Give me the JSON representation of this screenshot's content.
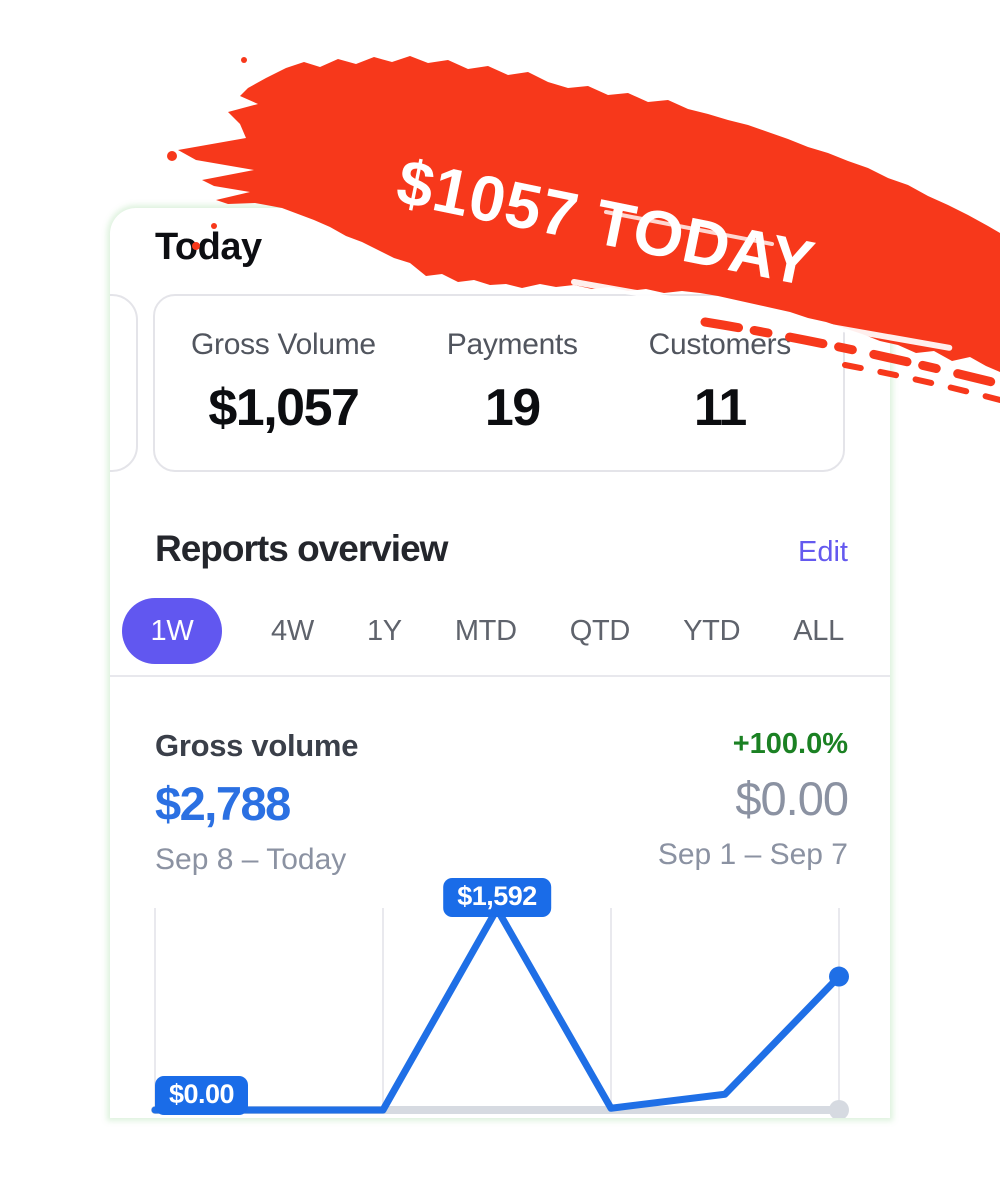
{
  "overlay": {
    "badge_text": "$1057 TODAY"
  },
  "app": {
    "today": {
      "title": "Today",
      "stats": [
        {
          "label": "Gross Volume",
          "value": "$1,057"
        },
        {
          "label": "Payments",
          "value": "19"
        },
        {
          "label": "Customers",
          "value": "11"
        }
      ]
    },
    "reports": {
      "title": "Reports overview",
      "edit_label": "Edit",
      "tabs": [
        {
          "label": "1W",
          "selected": true
        },
        {
          "label": "4W",
          "selected": false
        },
        {
          "label": "1Y",
          "selected": false
        },
        {
          "label": "MTD",
          "selected": false
        },
        {
          "label": "QTD",
          "selected": false
        },
        {
          "label": "YTD",
          "selected": false
        },
        {
          "label": "ALL",
          "selected": false
        }
      ]
    },
    "gross_volume": {
      "title": "Gross volume",
      "change": "+100.0%",
      "current": {
        "amount": "$2,788",
        "period": "Sep 8 – Today"
      },
      "previous": {
        "amount": "$0.00",
        "period": "Sep 1 – Sep 7"
      }
    }
  },
  "chart_data": {
    "type": "line",
    "title": "Gross volume",
    "x": [
      1,
      2,
      3,
      4,
      5,
      6,
      7
    ],
    "xlabel": "",
    "ylabel": "",
    "ylim": [
      0,
      1600
    ],
    "grid_at_points": [
      0,
      2,
      4,
      6
    ],
    "legend": "none",
    "series": [
      {
        "name": "Sep 1 – Sep 7",
        "color": "#d6dae1",
        "values": [
          0,
          0,
          0,
          0,
          0,
          0,
          0
        ],
        "end_dot": true,
        "width": 8
      },
      {
        "name": "Sep 8 – Today",
        "color": "#1f6fe6",
        "values": [
          0,
          0,
          0,
          1592,
          14,
          125,
          1057
        ],
        "end_dot": true,
        "width": 7
      }
    ],
    "callouts": [
      {
        "series": 1,
        "point": 3,
        "label": "$1,592"
      },
      {
        "series": 0,
        "point": 0,
        "label": "$0.00"
      }
    ]
  },
  "colors": {
    "accent_purple": "#6157f0",
    "edit_purple": "#6459ef",
    "chart_blue": "#1f6fe6",
    "badge_blue": "#1a6ce8",
    "amount_blue": "#2b70e2",
    "positive_green": "#1b8123",
    "prev_gray": "#d6dae1",
    "gridline_gray": "#e9e9ee",
    "brush_red": "#f7381b"
  }
}
